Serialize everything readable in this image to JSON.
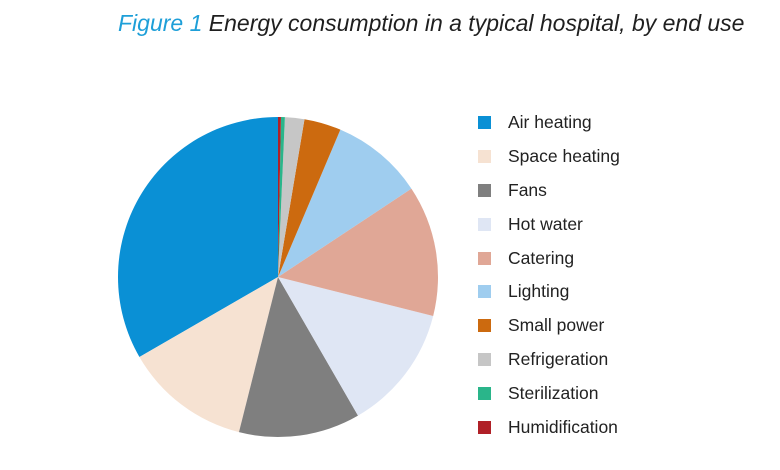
{
  "title": {
    "figure_label": "Figure 1",
    "text": "Energy consumption in a typical hospital, by end use"
  },
  "chart_data": {
    "type": "pie",
    "title": "Figure 1 Energy consumption in a typical hospital, by end use",
    "start_angle_deg": 0,
    "direction": "clockwise",
    "legend_position": "right",
    "slices": [
      {
        "label": "Air heating",
        "value": 34.0,
        "color": "#0a90d5"
      },
      {
        "label": "Space heating",
        "value": 13.0,
        "color": "#f6e2d2"
      },
      {
        "label": "Fans",
        "value": 12.5,
        "color": "#7f7f7f"
      },
      {
        "label": "Hot water",
        "value": 13.0,
        "color": "#dfe6f4"
      },
      {
        "label": "Catering",
        "value": 13.5,
        "color": "#e0a796"
      },
      {
        "label": "Lighting",
        "value": 9.5,
        "color": "#9fcdef"
      },
      {
        "label": "Small power",
        "value": 3.8,
        "color": "#cc6a0f"
      },
      {
        "label": "Refrigeration",
        "value": 2.0,
        "color": "#c6c6c6"
      },
      {
        "label": "Sterilization",
        "value": 0.4,
        "color": "#2ab58a"
      },
      {
        "label": "Humidification",
        "value": 0.3,
        "color": "#b02027"
      }
    ]
  }
}
